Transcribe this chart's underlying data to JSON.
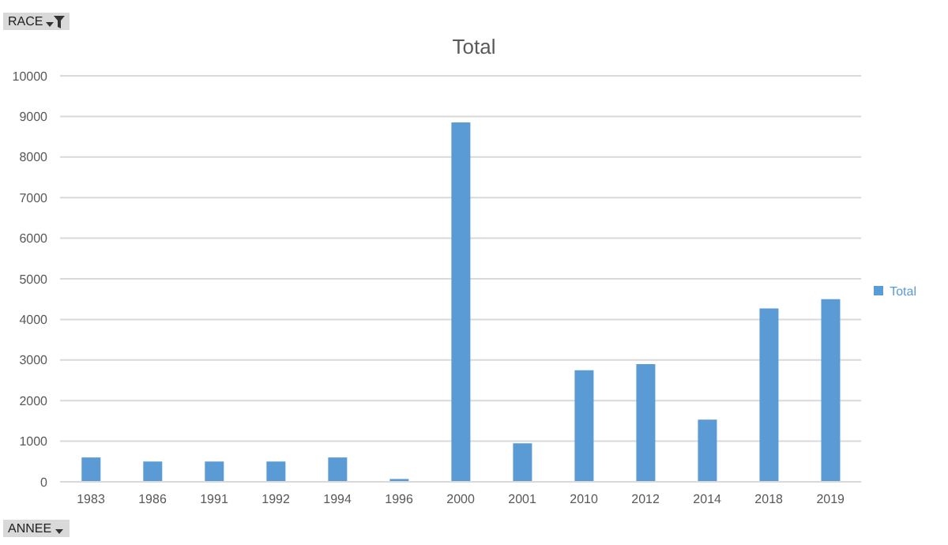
{
  "chart_data": {
    "type": "bar",
    "title": "Total",
    "categories": [
      "1983",
      "1986",
      "1991",
      "1992",
      "1994",
      "1996",
      "2000",
      "2001",
      "2010",
      "2012",
      "2014",
      "2018",
      "2019"
    ],
    "series": [
      {
        "name": "Total",
        "color": "#5b9bd5",
        "values": [
          600,
          500,
          500,
          500,
          600,
          70,
          8850,
          950,
          2750,
          2900,
          1530,
          4270,
          4500
        ]
      }
    ],
    "ylim": [
      0,
      10000
    ],
    "yticks": [
      0,
      1000,
      2000,
      3000,
      4000,
      5000,
      6000,
      7000,
      8000,
      9000,
      10000
    ],
    "grid": "y",
    "legend": "right",
    "annotations": [
      "RACE",
      "ANNEE"
    ]
  }
}
